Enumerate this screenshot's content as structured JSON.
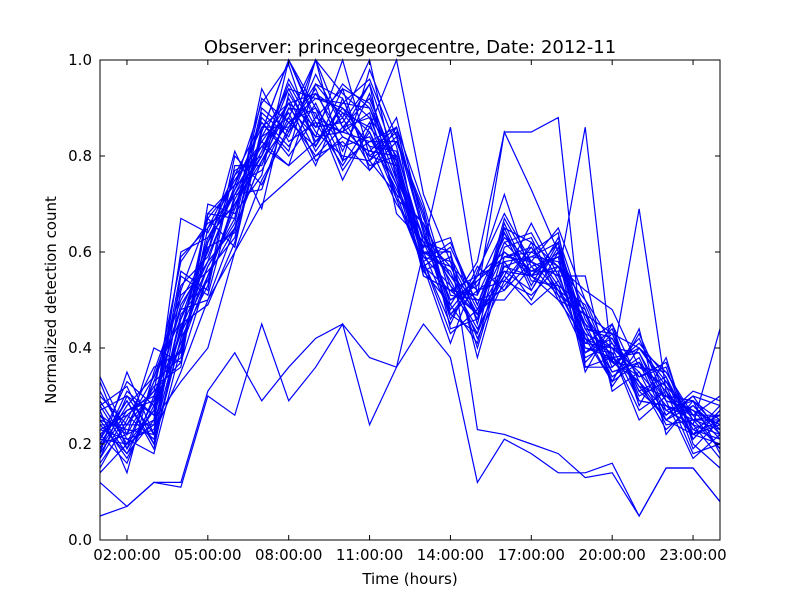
{
  "chart_data": {
    "type": "line",
    "title": "Observer: princegeorgecentre, Date: 2012-11",
    "xlabel": "Time (hours)",
    "ylabel": "Normalized detection count",
    "x": [
      1,
      2,
      3,
      4,
      5,
      6,
      7,
      8,
      9,
      10,
      11,
      12,
      13,
      14,
      15,
      16,
      17,
      18,
      19,
      20,
      21,
      22,
      23,
      24
    ],
    "xlim": [
      1,
      24
    ],
    "ylim": [
      0.0,
      1.0
    ],
    "x_ticks": [
      {
        "value": 2,
        "label": "02:00:00"
      },
      {
        "value": 5,
        "label": "05:00:00"
      },
      {
        "value": 8,
        "label": "08:00:00"
      },
      {
        "value": 11,
        "label": "11:00:00"
      },
      {
        "value": 14,
        "label": "14:00:00"
      },
      {
        "value": 17,
        "label": "17:00:00"
      },
      {
        "value": 20,
        "label": "20:00:00"
      },
      {
        "value": 23,
        "label": "23:00:00"
      }
    ],
    "y_ticks": [
      {
        "value": 0.0,
        "label": "0.0"
      },
      {
        "value": 0.2,
        "label": "0.2"
      },
      {
        "value": 0.4,
        "label": "0.4"
      },
      {
        "value": 0.6,
        "label": "0.6"
      },
      {
        "value": 0.8,
        "label": "0.8"
      },
      {
        "value": 1.0,
        "label": "1.0"
      }
    ],
    "line_color": "#0000ff",
    "grid": false,
    "series": [
      {
        "values": [
          0.05,
          0.07,
          0.12,
          0.11,
          0.3,
          0.26,
          0.45,
          0.29,
          0.36,
          0.45,
          0.24,
          0.36,
          0.6,
          0.6,
          0.23,
          0.22,
          0.2,
          0.18,
          0.13,
          0.14,
          0.05,
          0.15,
          0.15,
          0.08
        ]
      },
      {
        "values": [
          0.12,
          0.07,
          0.12,
          0.12,
          0.31,
          0.39,
          0.29,
          0.36,
          0.42,
          0.45,
          0.38,
          0.36,
          0.45,
          0.38,
          0.12,
          0.21,
          0.18,
          0.14,
          0.14,
          0.16,
          0.05,
          0.15,
          0.15,
          0.08
        ]
      },
      {
        "values": [
          0.2,
          0.22,
          0.25,
          0.33,
          0.4,
          0.6,
          0.7,
          0.75,
          0.8,
          0.86,
          0.8,
          0.78,
          0.55,
          0.52,
          0.47,
          0.57,
          0.55,
          0.5,
          0.47,
          0.43,
          0.4,
          0.33,
          0.25,
          0.23
        ]
      },
      {
        "values": [
          0.23,
          0.21,
          0.18,
          0.4,
          0.55,
          0.65,
          0.79,
          0.87,
          0.92,
          0.9,
          0.82,
          0.7,
          0.62,
          0.55,
          0.5,
          0.52,
          0.58,
          0.52,
          0.45,
          0.4,
          0.35,
          0.28,
          0.22,
          0.2
        ]
      },
      {
        "values": [
          0.17,
          0.3,
          0.22,
          0.35,
          0.5,
          0.6,
          0.75,
          0.85,
          1.0,
          0.93,
          0.88,
          0.8,
          0.6,
          0.47,
          0.43,
          0.65,
          0.62,
          0.57,
          0.5,
          0.37,
          0.33,
          0.27,
          0.24,
          0.22
        ]
      },
      {
        "values": [
          0.26,
          0.18,
          0.29,
          0.4,
          0.62,
          0.72,
          0.8,
          0.96,
          0.86,
          0.95,
          0.9,
          0.75,
          0.57,
          0.52,
          0.55,
          0.72,
          0.55,
          0.52,
          0.48,
          0.33,
          0.43,
          0.3,
          0.29,
          0.18
        ]
      },
      {
        "values": [
          0.3,
          0.24,
          0.34,
          0.46,
          0.58,
          0.65,
          0.85,
          1.0,
          0.88,
          0.85,
          0.95,
          0.68,
          0.62,
          0.6,
          0.38,
          0.58,
          0.59,
          0.62,
          0.42,
          0.37,
          0.4,
          0.35,
          0.25,
          0.25
        ]
      },
      {
        "values": [
          0.21,
          0.29,
          0.2,
          0.52,
          0.67,
          0.74,
          0.77,
          0.88,
          1.0,
          0.79,
          0.98,
          0.84,
          0.64,
          0.46,
          0.55,
          0.6,
          0.55,
          0.6,
          0.4,
          0.38,
          0.33,
          0.25,
          0.22,
          0.24
        ]
      },
      {
        "values": [
          0.14,
          0.2,
          0.27,
          0.43,
          0.55,
          0.7,
          0.8,
          0.91,
          0.93,
          0.89,
          0.86,
          1.0,
          0.72,
          0.58,
          0.47,
          0.53,
          0.6,
          0.57,
          0.52,
          0.48,
          0.36,
          0.32,
          0.26,
          0.3
        ]
      },
      {
        "values": [
          0.28,
          0.19,
          0.33,
          0.38,
          0.65,
          0.76,
          0.87,
          0.81,
          1.0,
          0.86,
          0.92,
          0.78,
          0.58,
          0.43,
          0.48,
          0.62,
          0.56,
          0.59,
          0.35,
          0.45,
          0.28,
          0.38,
          0.2,
          0.15
        ]
      },
      {
        "values": [
          0.22,
          0.27,
          0.3,
          0.48,
          0.6,
          0.81,
          0.69,
          0.93,
          0.84,
          1.0,
          0.8,
          0.85,
          0.56,
          0.49,
          0.58,
          0.85,
          0.73,
          0.6,
          0.44,
          0.35,
          0.37,
          0.29,
          0.17,
          0.22
        ]
      },
      {
        "values": [
          0.18,
          0.35,
          0.22,
          0.55,
          0.51,
          0.72,
          0.83,
          0.78,
          0.95,
          0.92,
          0.79,
          0.72,
          0.66,
          0.55,
          0.47,
          0.55,
          0.66,
          0.55,
          0.42,
          0.33,
          0.44,
          0.22,
          0.29,
          0.25
        ]
      },
      {
        "values": [
          0.34,
          0.22,
          0.4,
          0.37,
          0.68,
          0.67,
          0.92,
          0.87,
          0.82,
          0.91,
          0.96,
          0.82,
          0.6,
          0.58,
          0.4,
          0.59,
          0.61,
          0.53,
          0.4,
          0.39,
          0.25,
          0.3,
          0.27,
          0.21
        ]
      },
      {
        "values": [
          0.25,
          0.17,
          0.28,
          0.49,
          0.58,
          0.74,
          0.91,
          0.99,
          0.82,
          0.94,
          0.77,
          0.83,
          0.69,
          0.47,
          0.52,
          0.54,
          0.51,
          0.57,
          0.44,
          0.42,
          0.31,
          0.26,
          0.31,
          0.29
        ]
      },
      {
        "values": [
          0.19,
          0.31,
          0.26,
          0.44,
          0.63,
          0.7,
          0.79,
          0.9,
          0.89,
          0.75,
          0.86,
          0.79,
          0.58,
          0.62,
          0.49,
          0.64,
          0.55,
          0.62,
          0.36,
          0.36,
          0.41,
          0.34,
          0.19,
          0.25
        ]
      },
      {
        "values": [
          0.27,
          0.14,
          0.35,
          0.51,
          0.56,
          0.63,
          0.85,
          1.0,
          0.87,
          0.85,
          0.89,
          0.71,
          0.57,
          0.41,
          0.56,
          0.68,
          0.58,
          0.65,
          0.5,
          0.41,
          0.32,
          0.25,
          0.28,
          0.22
        ]
      },
      {
        "values": [
          0.23,
          0.26,
          0.21,
          0.42,
          0.53,
          0.8,
          0.74,
          0.86,
          0.95,
          0.88,
          1.0,
          0.75,
          0.63,
          0.54,
          0.44,
          0.55,
          0.49,
          0.54,
          0.43,
          0.33,
          0.37,
          0.31,
          0.22,
          0.28
        ]
      },
      {
        "values": [
          0.16,
          0.24,
          0.31,
          0.58,
          0.66,
          0.69,
          0.88,
          0.82,
          0.91,
          0.79,
          0.83,
          0.86,
          0.7,
          0.51,
          0.5,
          0.5,
          0.57,
          0.59,
          0.39,
          0.44,
          0.29,
          0.28,
          0.26,
          0.19
        ]
      },
      {
        "values": [
          0.29,
          0.2,
          0.24,
          0.46,
          0.62,
          0.77,
          0.8,
          0.94,
          0.83,
          0.9,
          0.85,
          0.71,
          0.66,
          0.49,
          0.41,
          0.61,
          0.63,
          0.51,
          0.47,
          0.38,
          0.34,
          0.36,
          0.21,
          0.27
        ]
      },
      {
        "values": [
          0.21,
          0.33,
          0.28,
          0.41,
          0.57,
          0.66,
          0.9,
          0.85,
          0.93,
          0.84,
          0.81,
          0.8,
          0.59,
          0.57,
          0.46,
          0.56,
          0.52,
          0.61,
          0.41,
          0.4,
          0.39,
          0.27,
          0.29,
          0.23
        ]
      },
      {
        "values": [
          0.24,
          0.18,
          0.25,
          0.67,
          0.64,
          0.75,
          0.83,
          0.91,
          0.86,
          0.87,
          0.95,
          0.79,
          0.55,
          0.52,
          0.51,
          0.63,
          0.58,
          0.55,
          0.55,
          0.31,
          0.35,
          0.24,
          0.25,
          0.26
        ]
      },
      {
        "values": [
          0.2,
          0.29,
          0.19,
          0.45,
          0.49,
          0.62,
          0.84,
          0.88,
          0.8,
          0.83,
          0.77,
          0.86,
          0.64,
          0.47,
          0.54,
          0.59,
          0.6,
          0.64,
          0.37,
          0.43,
          0.3,
          0.33,
          0.23,
          0.21
        ]
      },
      {
        "values": [
          0.26,
          0.22,
          0.32,
          0.36,
          0.7,
          0.68,
          0.76,
          1.0,
          0.9,
          0.82,
          0.84,
          0.73,
          0.61,
          0.63,
          0.45,
          0.66,
          0.54,
          0.53,
          0.49,
          0.36,
          0.42,
          0.29,
          0.27,
          0.24
        ]
      },
      {
        "values": [
          0.18,
          0.27,
          0.29,
          0.53,
          0.59,
          0.73,
          0.87,
          0.8,
          0.88,
          0.94,
          0.91,
          0.77,
          0.58,
          0.45,
          0.57,
          0.52,
          0.62,
          0.5,
          0.42,
          0.39,
          0.27,
          0.31,
          0.18,
          0.2
        ]
      },
      {
        "values": [
          0.31,
          0.21,
          0.23,
          0.47,
          0.54,
          0.71,
          0.81,
          0.95,
          0.85,
          0.8,
          0.79,
          0.84,
          0.67,
          0.53,
          0.43,
          0.57,
          0.59,
          0.58,
          0.45,
          0.34,
          0.38,
          0.26,
          0.3,
          0.28
        ]
      },
      {
        "values": [
          0.15,
          0.25,
          0.36,
          0.39,
          0.61,
          0.64,
          0.89,
          0.84,
          0.97,
          0.86,
          0.88,
          0.74,
          0.56,
          0.59,
          0.48,
          0.6,
          0.56,
          0.56,
          0.38,
          0.41,
          0.32,
          0.3,
          0.24,
          0.17
        ]
      },
      {
        "values": [
          0.27,
          0.3,
          0.26,
          0.56,
          0.52,
          0.78,
          0.78,
          0.92,
          0.81,
          0.89,
          0.82,
          0.81,
          0.62,
          0.5,
          0.53,
          0.65,
          0.53,
          0.63,
          0.46,
          0.37,
          0.36,
          0.35,
          0.26,
          0.26
        ]
      },
      {
        "values": [
          0.22,
          0.16,
          0.3,
          0.43,
          0.67,
          0.61,
          0.86,
          0.86,
          0.94,
          0.81,
          0.93,
          0.76,
          0.6,
          0.56,
          0.42,
          0.54,
          0.61,
          0.52,
          0.41,
          0.45,
          0.33,
          0.23,
          0.28,
          0.23
        ]
      },
      {
        "values": [
          0.19,
          0.28,
          0.34,
          0.5,
          0.6,
          0.76,
          0.82,
          0.89,
          0.78,
          0.92,
          0.79,
          0.88,
          0.65,
          0.48,
          0.55,
          0.58,
          0.5,
          0.6,
          0.48,
          0.32,
          0.4,
          0.32,
          0.21,
          0.27
        ]
      },
      {
        "values": [
          0.25,
          0.23,
          0.22,
          0.44,
          0.57,
          0.67,
          0.94,
          0.83,
          0.87,
          0.78,
          0.87,
          0.72,
          0.57,
          0.61,
          0.49,
          0.62,
          0.64,
          0.54,
          0.43,
          0.4,
          0.29,
          0.28,
          0.25,
          0.19
        ]
      },
      {
        "values": [
          0.33,
          0.19,
          0.27,
          0.59,
          0.65,
          0.72,
          0.73,
          0.9,
          0.84,
          0.85,
          0.83,
          0.83,
          0.68,
          0.44,
          0.46,
          0.67,
          0.57,
          0.51,
          0.39,
          0.42,
          0.34,
          0.37,
          0.22,
          0.25
        ]
      },
      {
        "values": [
          0.17,
          0.26,
          0.31,
          0.37,
          0.55,
          0.69,
          0.84,
          0.94,
          0.92,
          0.91,
          0.9,
          0.78,
          0.63,
          0.57,
          0.52,
          0.56,
          0.55,
          0.57,
          0.47,
          0.35,
          0.37,
          0.25,
          0.3,
          0.22
        ]
      },
      {
        "values": [
          0.24,
          0.24,
          0.24,
          0.6,
          0.63,
          0.73,
          0.82,
          0.78,
          0.83,
          0.88,
          0.78,
          0.8,
          0.59,
          0.53,
          0.47,
          0.64,
          0.52,
          0.62,
          0.44,
          0.43,
          0.31,
          0.34,
          0.23,
          0.26
        ]
      },
      {
        "values": [
          0.21,
          0.2,
          0.33,
          0.48,
          0.5,
          0.65,
          0.79,
          0.87,
          0.9,
          0.77,
          0.85,
          0.74,
          0.61,
          0.86,
          0.51,
          0.85,
          0.85,
          0.88,
          0.36,
          0.38,
          0.39,
          0.29,
          0.27,
          0.24
        ]
      },
      {
        "values": [
          0.28,
          0.32,
          0.2,
          0.42,
          0.68,
          0.74,
          0.86,
          0.91,
          0.79,
          0.84,
          0.81,
          0.86,
          0.64,
          0.5,
          0.54,
          0.59,
          0.58,
          0.55,
          0.86,
          0.37,
          0.69,
          0.31,
          0.24,
          0.44
        ]
      }
    ]
  }
}
